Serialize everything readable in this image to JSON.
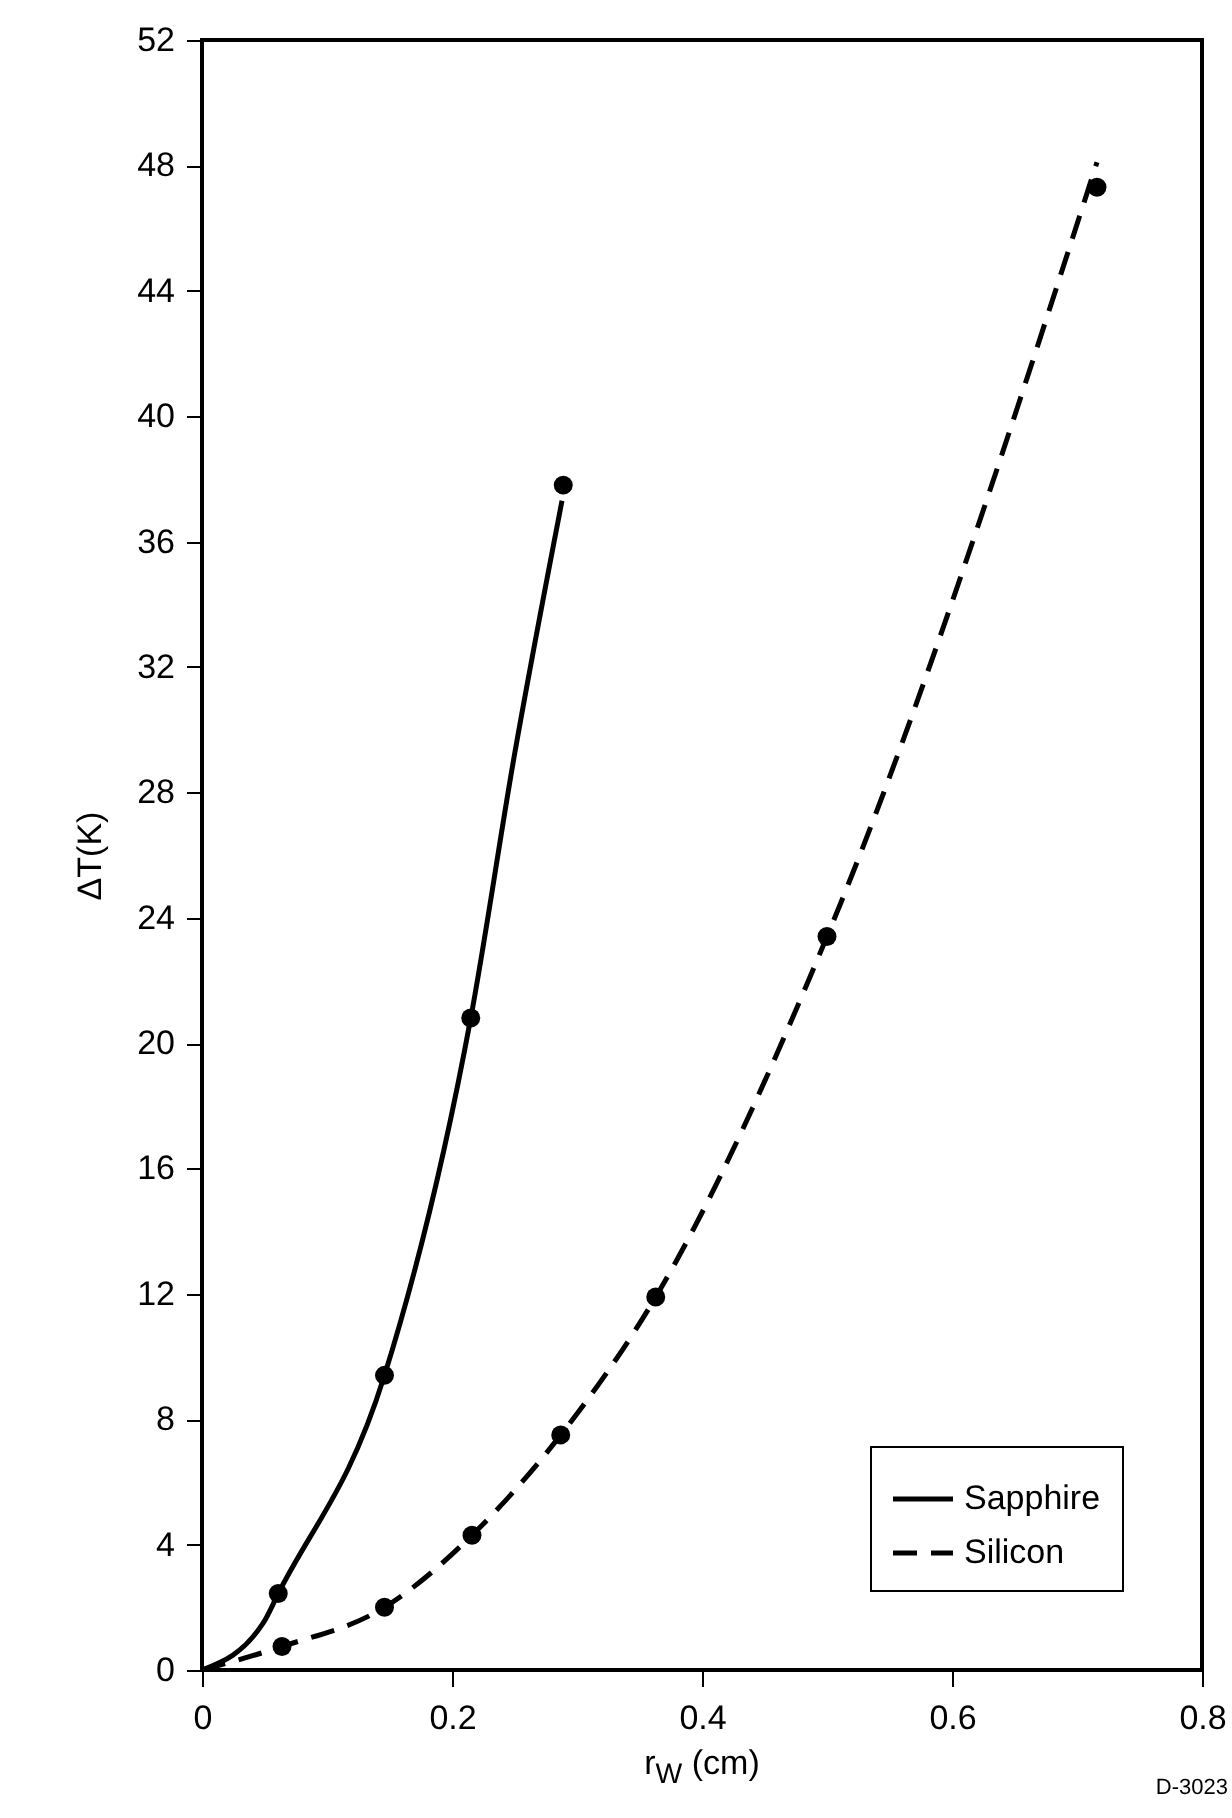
{
  "chart_data": {
    "type": "line",
    "xlabel": "r$_{W}$ (cm)",
    "ylabel": "ΔT(K)",
    "annotations": [
      "D-3023"
    ],
    "xlim": [
      0,
      0.8
    ],
    "xticks": [
      0,
      0.2,
      0.4,
      0.6,
      0.8
    ],
    "ylim": [
      0,
      52
    ],
    "yticks": [
      0,
      4,
      8,
      12,
      16,
      20,
      24,
      28,
      32,
      36,
      40,
      44,
      48,
      52
    ],
    "grid": false,
    "legend": "bottom right",
    "series": [
      {
        "name": "Sapphire",
        "type": "line",
        "color": "#000000",
        "line_style": "solid",
        "marker": "none",
        "x": [
          0,
          0.049,
          0.061,
          0.146,
          0.215,
          0.25,
          0.288
        ],
        "values": [
          0,
          1.5,
          2.44,
          9.4,
          20.8,
          29.2,
          37.3
        ]
      },
      {
        "name": "Silicon",
        "type": "line",
        "color": "#000000",
        "line_style": "dashed",
        "marker": "none",
        "x": [
          0,
          0.064,
          0.146,
          0.216,
          0.287,
          0.363,
          0.5,
          0.716
        ],
        "values": [
          0,
          0.75,
          2.0,
          4.3,
          7.5,
          11.9,
          23.4,
          48.1
        ]
      },
      {
        "type": "scatter",
        "color": "#000000",
        "marker": "circle",
        "x": [
          0.061,
          0.146,
          0.215,
          0.289
        ],
        "values": [
          2.44,
          9.4,
          20.8,
          37.8
        ]
      },
      {
        "type": "scatter",
        "color": "#000000",
        "marker": "circle",
        "x": [
          0.064,
          0.146,
          0.216,
          0.287,
          0.363,
          0.5,
          0.716
        ],
        "values": [
          0.75,
          2.0,
          4.3,
          7.5,
          11.9,
          23.4,
          47.3
        ]
      }
    ]
  }
}
